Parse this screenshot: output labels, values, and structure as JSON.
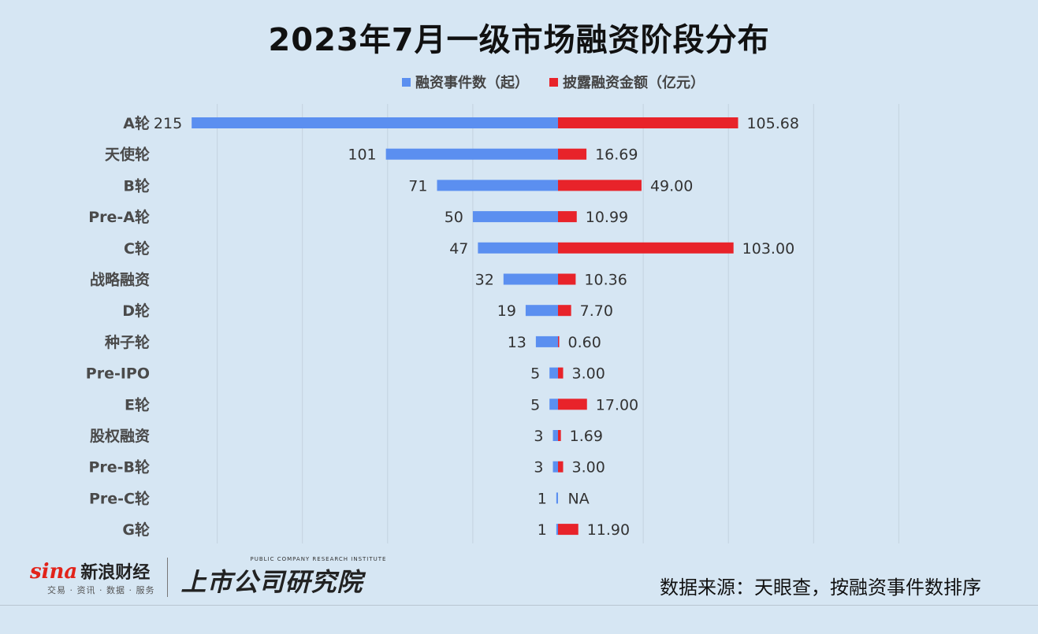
{
  "chart_data": {
    "type": "bar",
    "orientation": "horizontal",
    "layout": "butterfly",
    "title": "2023年7月一级市场融资阶段分布",
    "categories": [
      "A轮",
      "天使轮",
      "B轮",
      "Pre-A轮",
      "C轮",
      "战略融资",
      "D轮",
      "种子轮",
      "Pre-IPO",
      "E轮",
      "股权融资",
      "Pre-B轮",
      "Pre-C轮",
      "G轮"
    ],
    "series": [
      {
        "name": "融资事件数（起）",
        "color": "#5b8ff0",
        "direction": "left",
        "values": [
          215,
          101,
          71,
          50,
          47,
          32,
          19,
          13,
          5,
          5,
          3,
          3,
          1,
          1
        ],
        "labels": [
          "215",
          "101",
          "71",
          "50",
          "47",
          "32",
          "19",
          "13",
          "5",
          "5",
          "3",
          "3",
          "1",
          "1"
        ]
      },
      {
        "name": "披露融资金额（亿元）",
        "color": "#e8232a",
        "direction": "right",
        "values": [
          105.68,
          16.69,
          49.0,
          10.99,
          103.0,
          10.36,
          7.7,
          0.6,
          3.0,
          17.0,
          1.69,
          3.0,
          null,
          11.9
        ],
        "labels": [
          "105.68",
          "16.69",
          "49.00",
          "10.99",
          "103.00",
          "10.36",
          "7.70",
          "0.60",
          "3.00",
          "17.00",
          "1.69",
          "3.00",
          "NA",
          "11.90"
        ]
      }
    ],
    "xlim": [
      -220,
      230
    ],
    "grid": true,
    "legend_position": "top"
  },
  "footer": {
    "sina_word": "sina",
    "sina_name": "新浪财经",
    "sina_tagline": "交易 · 资讯 · 数据 · 服务",
    "institute_en": "PUBLIC COMPANY RESEARCH INSTITUTE",
    "institute_cn": "上市公司研究院",
    "source_note": "数据来源：天眼查，按融资事件数排序"
  }
}
